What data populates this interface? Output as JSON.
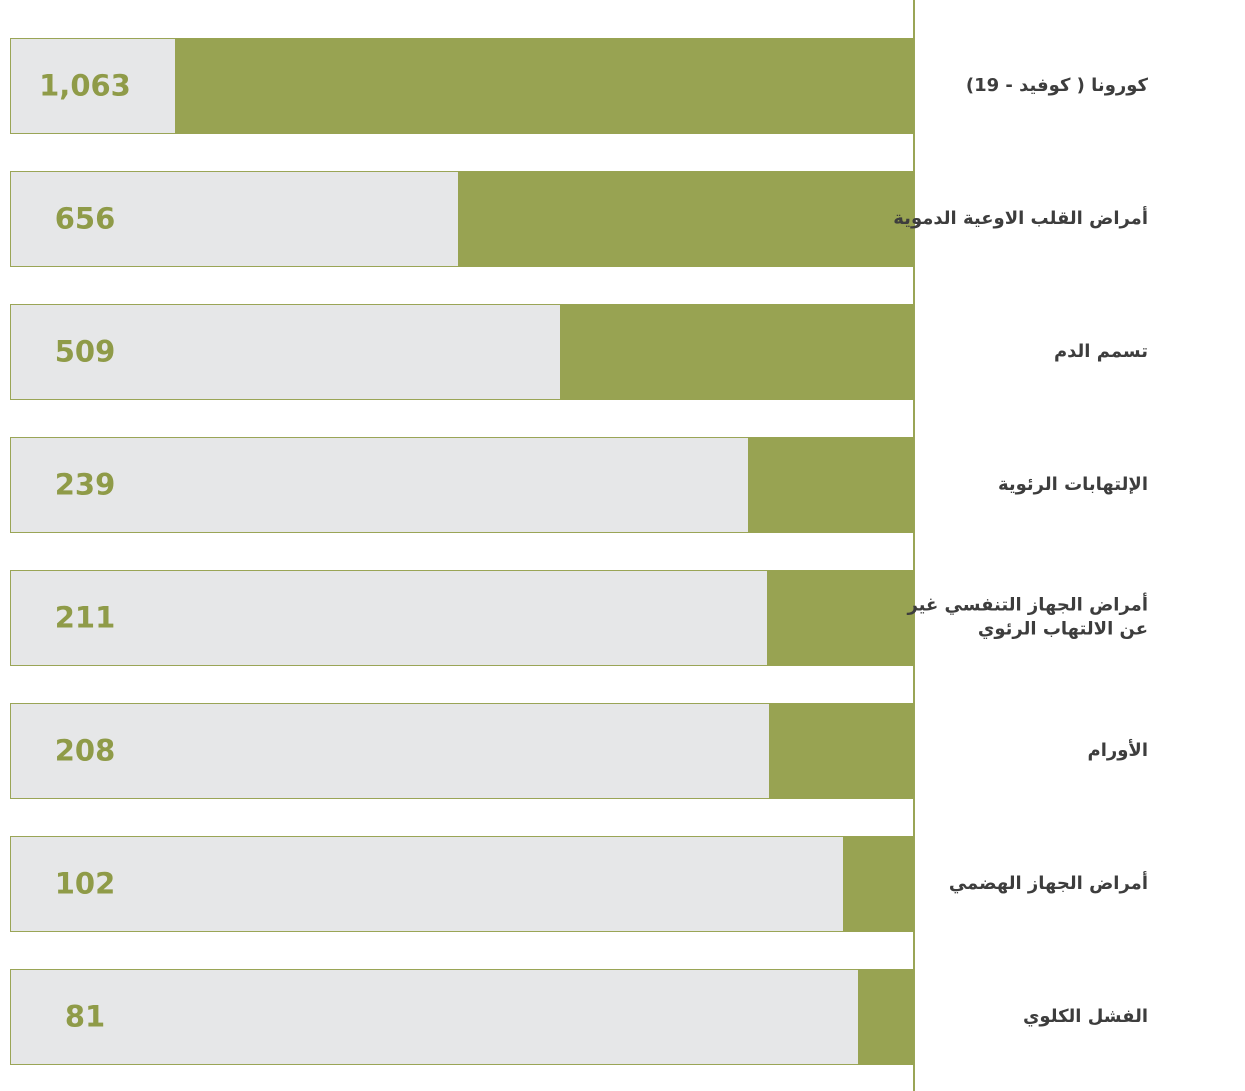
{
  "chart_data": {
    "type": "bar",
    "categories": [
      "كورونا ( كوفيد - 19)",
      "أمراض القلب الاوعية الدموية",
      "تسمم الدم",
      "الإلتهابات الرئوية",
      "أمراض الجهاز التنفسي غير\nعن الالتهاب الرئوي",
      "الأورام",
      "أمراض الجهاز الهضمي",
      "الفشل الكلوي"
    ],
    "values": [
      1063,
      656,
      509,
      239,
      211,
      208,
      102,
      81
    ],
    "value_labels": [
      "1,063",
      "656",
      "509",
      "239",
      "211",
      "208",
      "102",
      "81"
    ],
    "color": "#98a352",
    "xlim": [
      0,
      1300
    ]
  }
}
